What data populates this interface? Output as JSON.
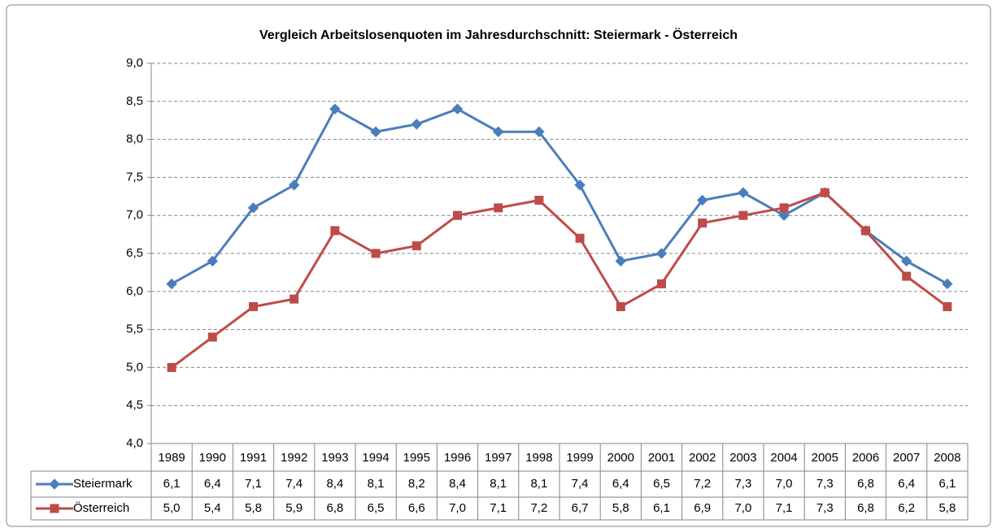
{
  "chart_data": {
    "type": "line",
    "title": "Vergleich Arbeitslosenquoten im Jahresdurchschnitt: Steiermark - Österreich",
    "categories": [
      "1989",
      "1990",
      "1991",
      "1992",
      "1993",
      "1994",
      "1995",
      "1996",
      "1997",
      "1998",
      "1999",
      "2000",
      "2001",
      "2002",
      "2003",
      "2004",
      "2005",
      "2006",
      "2007",
      "2008"
    ],
    "series": [
      {
        "name": "Steiermark",
        "color": "#4a7ebb",
        "marker": "diamond",
        "values": [
          6.1,
          6.4,
          7.1,
          7.4,
          8.4,
          8.1,
          8.2,
          8.4,
          8.1,
          8.1,
          7.4,
          6.4,
          6.5,
          7.2,
          7.3,
          7.0,
          7.3,
          6.8,
          6.4,
          6.1
        ],
        "value_labels": [
          "6,1",
          "6,4",
          "7,1",
          "7,4",
          "8,4",
          "8,1",
          "8,2",
          "8,4",
          "8,1",
          "8,1",
          "7,4",
          "6,4",
          "6,5",
          "7,2",
          "7,3",
          "7,0",
          "7,3",
          "6,8",
          "6,4",
          "6,1"
        ]
      },
      {
        "name": "Österreich",
        "color": "#be4b48",
        "marker": "square",
        "values": [
          5.0,
          5.4,
          5.8,
          5.9,
          6.8,
          6.5,
          6.6,
          7.0,
          7.1,
          7.2,
          6.7,
          5.8,
          6.1,
          6.9,
          7.0,
          7.1,
          7.3,
          6.8,
          6.2,
          5.8
        ],
        "value_labels": [
          "5,0",
          "5,4",
          "5,8",
          "5,9",
          "6,8",
          "6,5",
          "6,6",
          "7,0",
          "7,1",
          "7,2",
          "6,7",
          "5,8",
          "6,1",
          "6,9",
          "7,0",
          "7,1",
          "7,3",
          "6,8",
          "6,2",
          "5,8"
        ]
      }
    ],
    "ylim": [
      4,
      9
    ],
    "yticks": [
      {
        "value": 4,
        "label": "4,0"
      },
      {
        "value": 4.5,
        "label": "4,5"
      },
      {
        "value": 5,
        "label": "5,0"
      },
      {
        "value": 5.5,
        "label": "5,5"
      },
      {
        "value": 6,
        "label": "6,0"
      },
      {
        "value": 6.5,
        "label": "6,5"
      },
      {
        "value": 7,
        "label": "7,0"
      },
      {
        "value": 7.5,
        "label": "7,5"
      },
      {
        "value": 8,
        "label": "8,0"
      },
      {
        "value": 8.5,
        "label": "8,5"
      },
      {
        "value": 9,
        "label": "9,0"
      }
    ],
    "grid": true
  }
}
